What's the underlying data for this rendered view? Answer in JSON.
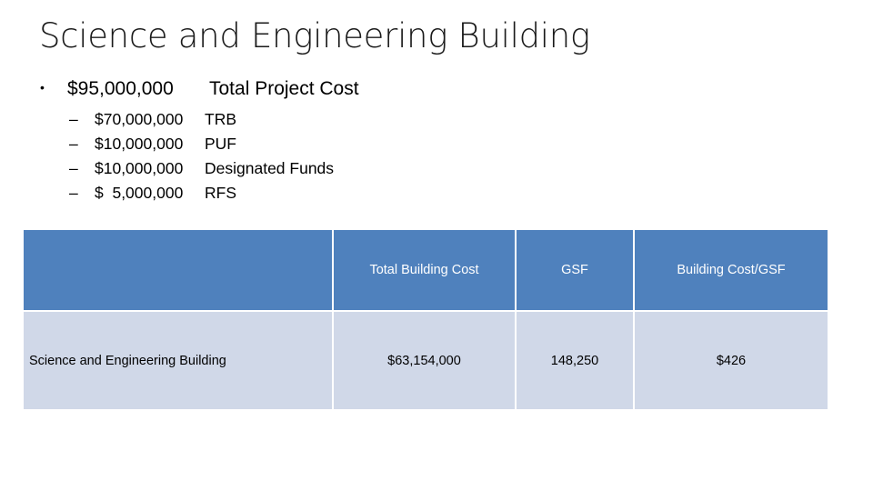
{
  "title": "Science and Engineering Building",
  "summary": {
    "bullet": "•",
    "amount": "$95,000,000",
    "label": "Total Project Cost"
  },
  "sources": [
    {
      "dash": "–",
      "amount": "$70,000,000",
      "label": "TRB"
    },
    {
      "dash": "–",
      "amount": "$10,000,000",
      "label": "PUF"
    },
    {
      "dash": "–",
      "amount": "$10,000,000",
      "label": "Designated Funds"
    },
    {
      "dash": "–",
      "amount": "$  5,000,000",
      "label": "RFS"
    }
  ],
  "table": {
    "headers": [
      "",
      "Total Building Cost",
      "GSF",
      "Building Cost/GSF"
    ],
    "rows": [
      [
        "Science and Engineering Building",
        "$63,154,000",
        "148,250",
        "$426"
      ]
    ]
  },
  "colors": {
    "header_fill": "#4f81bd",
    "row_fill": "#d0d8e8"
  }
}
